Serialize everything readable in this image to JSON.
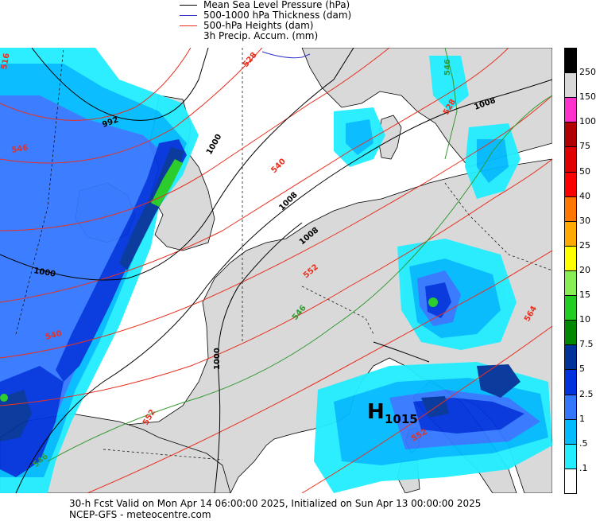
{
  "legend": {
    "items": [
      {
        "label": "Mean Sea Level Pressure (hPa)",
        "color": "#000000"
      },
      {
        "label": "500-1000 hPa Thickness (dam)",
        "color": "#3333cc"
      },
      {
        "label": "500-hPa Heights (dam)",
        "color": "#e83020"
      },
      {
        "label": "3h Precip. Accum. (mm)",
        "color": ""
      }
    ]
  },
  "colorbar": {
    "labels": [
      "250",
      "150",
      "100",
      "75",
      "50",
      "40",
      "30",
      "25",
      "20",
      "15",
      "10",
      "7.5",
      "5",
      "2.5",
      "1",
      ".5",
      ".1"
    ],
    "colors": [
      "#000000",
      "#d8d8d8",
      "#ff33cc",
      "#b00000",
      "#e00000",
      "#ff0000",
      "#ff7700",
      "#ffaa00",
      "#ffff00",
      "#88ee55",
      "#22cc22",
      "#008800",
      "#003399",
      "#0033dd",
      "#3377ff",
      "#00bbff",
      "#22eeff",
      "#ffffff"
    ]
  },
  "map": {
    "pressure_labels": [
      "992",
      "1000",
      "1008",
      "1008",
      "1000",
      "1000",
      "1008"
    ],
    "height_labels": [
      "516",
      "528",
      "540",
      "540",
      "546",
      "552",
      "552",
      "564",
      "528",
      "552"
    ],
    "thickness_labels": [
      "546",
      "546",
      "546"
    ],
    "high_label": "H",
    "high_value": "1015"
  },
  "footer": {
    "line1": "30-h Fcst Valid on Mon Apr 14 06:00:00 2025, Initialized on Sun Apr 13 00:00:00 2025",
    "line2": "NCEP-GFS  -  meteocentre.com"
  }
}
